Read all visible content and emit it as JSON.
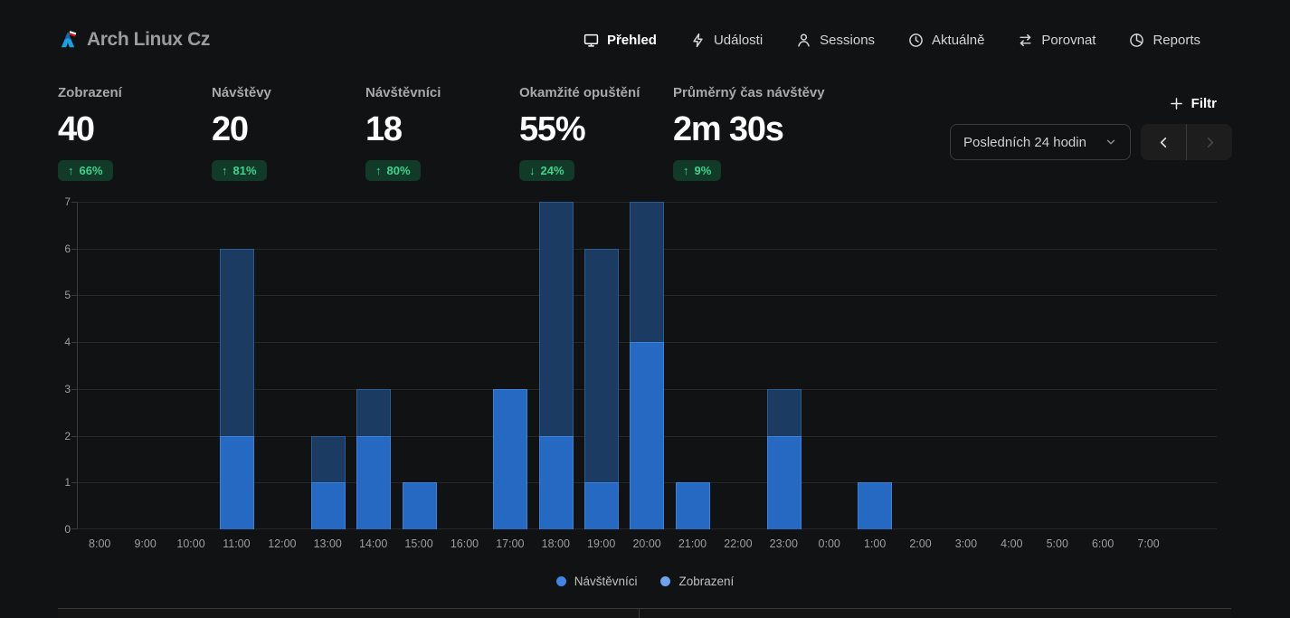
{
  "site": {
    "title": "Arch Linux Cz"
  },
  "nav": [
    {
      "label": "Přehled",
      "icon": "monitor-icon",
      "active": true
    },
    {
      "label": "Události",
      "icon": "lightning-icon",
      "active": false
    },
    {
      "label": "Sessions",
      "icon": "person-icon",
      "active": false
    },
    {
      "label": "Aktuálně",
      "icon": "clock-icon",
      "active": false
    },
    {
      "label": "Porovnat",
      "icon": "compare-icon",
      "active": false
    },
    {
      "label": "Reports",
      "icon": "pie-chart-icon",
      "active": false
    }
  ],
  "stats": [
    {
      "label": "Zobrazení",
      "value": "40",
      "arrow": "↑",
      "change": "66%"
    },
    {
      "label": "Návštěvy",
      "value": "20",
      "arrow": "↑",
      "change": "81%"
    },
    {
      "label": "Návštěvníci",
      "value": "18",
      "arrow": "↑",
      "change": "80%"
    },
    {
      "label": "Okamžité opuštění",
      "value": "55%",
      "arrow": "↓",
      "change": "24%"
    },
    {
      "label": "Průměrný čas návštěvy",
      "value": "2m 30s",
      "arrow": "↑",
      "change": "9%"
    }
  ],
  "controls": {
    "filter_label": "Filtr",
    "date_range": "Posledních 24 hodin"
  },
  "colors": {
    "background": "#111213",
    "badge_bg": "#123a29",
    "badge_text": "#3ed38d",
    "views_bar": "#1b3b62",
    "views_bar_border": "#2a5c94",
    "visitors_bar": "#2669c3",
    "visitors_bar_border": "#3d82d9"
  },
  "chart_data": {
    "type": "bar",
    "title": "",
    "xlabel": "",
    "ylabel": "",
    "categories": [
      "8:00",
      "9:00",
      "10:00",
      "11:00",
      "12:00",
      "13:00",
      "14:00",
      "15:00",
      "16:00",
      "17:00",
      "18:00",
      "19:00",
      "20:00",
      "21:00",
      "22:00",
      "23:00",
      "0:00",
      "1:00",
      "2:00",
      "3:00",
      "4:00",
      "5:00",
      "6:00",
      "7:00"
    ],
    "series": [
      {
        "name": "Zobrazení",
        "values": [
          0,
          0,
          0,
          6,
          0,
          2,
          3,
          1,
          0,
          3,
          7,
          6,
          7,
          1,
          0,
          3,
          0,
          1,
          0,
          0,
          0,
          0,
          0,
          0
        ],
        "color": "#1b3b62",
        "border": "#2a5c94"
      },
      {
        "name": "Návštěvníci",
        "values": [
          0,
          0,
          0,
          2,
          0,
          1,
          2,
          1,
          0,
          3,
          2,
          1,
          4,
          1,
          0,
          2,
          0,
          1,
          0,
          0,
          0,
          0,
          0,
          0
        ],
        "color": "#2669c3",
        "border": "#3d82d9"
      }
    ],
    "ylim": [
      0,
      7
    ],
    "yticks": [
      0,
      1,
      2,
      3,
      4,
      5,
      6,
      7
    ],
    "grid": true,
    "legend_position": "bottom",
    "legend": [
      {
        "label": "Návštěvníci",
        "color": "#4285e8"
      },
      {
        "label": "Zobrazení",
        "color": "#6fa3ea"
      }
    ],
    "trailing_empty_slots": 1
  }
}
